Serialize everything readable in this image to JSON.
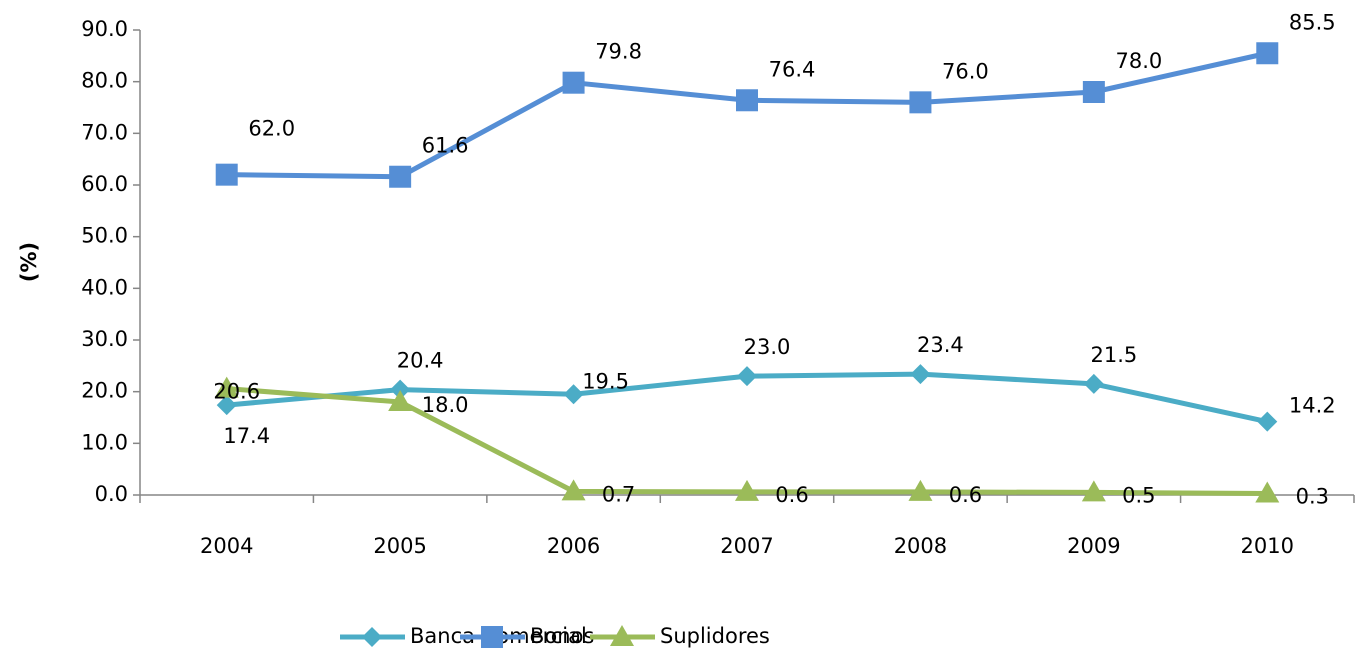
{
  "chart_data": {
    "type": "line",
    "y_label": "(%)",
    "categories": [
      "2004",
      "2005",
      "2006",
      "2007",
      "2008",
      "2009",
      "2010"
    ],
    "series": [
      {
        "name": "Banca Comercial",
        "color": "#4bacc6",
        "marker": "diamond",
        "values": [
          17.4,
          20.4,
          19.5,
          23.0,
          23.4,
          21.5,
          14.2
        ],
        "value_labels": [
          "17.4",
          "20.4",
          "19.5",
          "23.0",
          "23.4",
          "21.5",
          "14.2"
        ]
      },
      {
        "name": "Bonos",
        "color": "#558ed5",
        "marker": "square",
        "values": [
          62.0,
          61.6,
          79.8,
          76.4,
          76.0,
          78.0,
          85.5
        ],
        "value_labels": [
          "62.0",
          "61.6",
          "79.8",
          "76.4",
          "76.0",
          "78.0",
          "85.5"
        ]
      },
      {
        "name": "Suplidores",
        "color": "#9bbb59",
        "marker": "triangle",
        "values": [
          20.6,
          18.0,
          0.7,
          0.6,
          0.6,
          0.5,
          0.3
        ],
        "value_labels": [
          "20.6",
          "18.0",
          "0.7",
          "0.6",
          "0.6",
          "0.5",
          "0.3"
        ]
      }
    ],
    "ylim": [
      0,
      90
    ],
    "yticks": [
      {
        "value": 0,
        "label": "0.0"
      },
      {
        "value": 10,
        "label": "10.0"
      },
      {
        "value": 20,
        "label": "20.0"
      },
      {
        "value": 30,
        "label": "30.0"
      },
      {
        "value": 40,
        "label": "40.0"
      },
      {
        "value": 50,
        "label": "50.0"
      },
      {
        "value": 60,
        "label": "60.0"
      },
      {
        "value": 70,
        "label": "70.0"
      },
      {
        "value": 80,
        "label": "80.0"
      },
      {
        "value": 90,
        "label": "90.0"
      }
    ],
    "legend": "bottom"
  }
}
